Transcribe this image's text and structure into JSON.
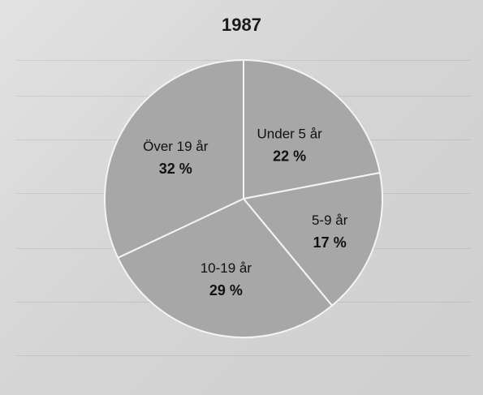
{
  "chart_data": {
    "type": "pie",
    "title": "1987",
    "categories": [
      "Under 5 år",
      "5-9 år",
      "10-19 år",
      "Över 19 år"
    ],
    "values": [
      22,
      17,
      29,
      32
    ],
    "value_labels": [
      "22 %",
      "17 %",
      "29 %",
      "32 %"
    ],
    "colors": {
      "slice_fill": "#a7a7a7",
      "slice_border": "#f4f4f4",
      "background": "#d8d8d8"
    },
    "start_angle_deg": 0,
    "direction": "clockwise"
  }
}
